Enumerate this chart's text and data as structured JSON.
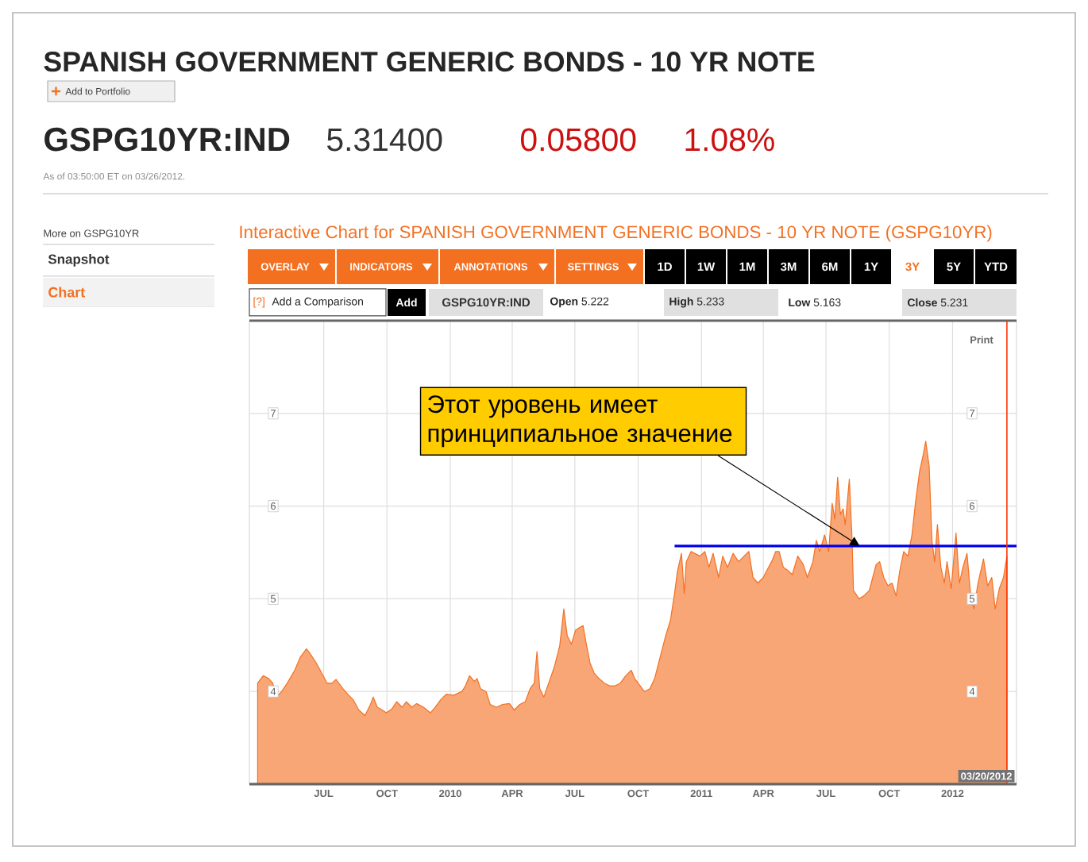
{
  "chart_data": {
    "type": "area",
    "title": "SPANISH GOVERNMENT GENERIC BONDS - 10 YR NOTE",
    "subtitle": "Interactive Chart for SPANISH GOVERNMENT GENERIC BONDS - 10 YR NOTE (GSPG10YR)",
    "annotations": [
      "Add to Portfolio",
      "GSPG10YR:IND",
      "5.31400",
      "0.05800",
      "1.08%",
      "As of 03:50:00 ET on 03/26/2012.",
      "More on GSPG10YR",
      "Snapshot",
      "Chart",
      "OVERLAY",
      "INDICATORS",
      "ANNOTATIONS",
      "SETTINGS",
      "1D",
      "1W",
      "1M",
      "3M",
      "6M",
      "1Y",
      "3Y",
      "5Y",
      "YTD",
      "[?]",
      "Add a Comparison",
      "Add",
      "GSPG10YR:IND",
      "**Open** 5.222",
      "**High** 5.233",
      "**Low** 5.163",
      "**Close** 5.231",
      "Print",
      {
        "text": "Этот уровень имеет принципиальное значение",
        "x": "2011-08-19",
        "y": 5.57
      }
    ],
    "series": [
      {
        "color": "#f8a675",
        "x": [
          "2009-03-27",
          "2009-04-04",
          "2009-04-12",
          "2009-04-18",
          "2009-04-23",
          "2009-05-01",
          "2009-05-09",
          "2009-05-20",
          "2009-05-28",
          "2009-06-06",
          "2009-06-12",
          "2009-06-20",
          "2009-06-28",
          "2009-07-06",
          "2009-07-13",
          "2009-07-19",
          "2009-07-29",
          "2009-08-05",
          "2009-08-13",
          "2009-08-21",
          "2009-08-30",
          "2009-09-07",
          "2009-09-11",
          "2009-09-17",
          "2009-09-24",
          "2009-09-30",
          "2009-10-08",
          "2009-10-15",
          "2009-10-23",
          "2009-10-29",
          "2009-11-06",
          "2009-11-13",
          "2009-11-23",
          "2009-12-03",
          "2009-12-10",
          "2009-12-18",
          "2009-12-26",
          "2010-01-06",
          "2010-01-18",
          "2010-01-23",
          "2010-01-29",
          "2010-02-05",
          "2010-02-09",
          "2010-02-14",
          "2010-02-22",
          "2010-02-28",
          "2010-03-09",
          "2010-03-18",
          "2010-03-28",
          "2010-04-04",
          "2010-04-12",
          "2010-04-20",
          "2010-04-27",
          "2010-05-03",
          "2010-05-07",
          "2010-05-11",
          "2010-05-17",
          "2010-05-24",
          "2010-06-01",
          "2010-06-09",
          "2010-06-15",
          "2010-06-20",
          "2010-06-26",
          "2010-07-02",
          "2010-07-08",
          "2010-07-13",
          "2010-07-17",
          "2010-07-23",
          "2010-07-29",
          "2010-08-05",
          "2010-08-13",
          "2010-08-21",
          "2010-08-28",
          "2010-09-05",
          "2010-09-13",
          "2010-09-21",
          "2010-09-26",
          "2010-10-04",
          "2010-10-10",
          "2010-10-18",
          "2010-10-25",
          "2010-11-02",
          "2010-11-10",
          "2010-11-17",
          "2010-11-23",
          "2010-11-27",
          "2010-12-03",
          "2010-12-07",
          "2010-12-10",
          "2010-12-17",
          "2010-12-22",
          "2010-12-30",
          "2011-01-06",
          "2011-01-12",
          "2011-01-18",
          "2011-01-26",
          "2011-02-01",
          "2011-02-08",
          "2011-02-16",
          "2011-02-24",
          "2011-03-04",
          "2011-03-11",
          "2011-03-17",
          "2011-03-24",
          "2011-04-01",
          "2011-04-05",
          "2011-04-13",
          "2011-04-19",
          "2011-04-24",
          "2011-04-30",
          "2011-05-06",
          "2011-05-13",
          "2011-05-21",
          "2011-05-29",
          "2011-06-04",
          "2011-06-12",
          "2011-06-17",
          "2011-06-22",
          "2011-06-29",
          "2011-07-05",
          "2011-07-10",
          "2011-07-14",
          "2011-07-18",
          "2011-07-22",
          "2011-07-26",
          "2011-07-29",
          "2011-08-04",
          "2011-08-08",
          "2011-08-10",
          "2011-08-18",
          "2011-08-25",
          "2011-09-02",
          "2011-09-07",
          "2011-09-12",
          "2011-09-17",
          "2011-09-23",
          "2011-09-29",
          "2011-10-05",
          "2011-10-11",
          "2011-10-16",
          "2011-10-22",
          "2011-10-28",
          "2011-11-03",
          "2011-11-08",
          "2011-11-14",
          "2011-11-19",
          "2011-11-23",
          "2011-11-28",
          "2011-12-02",
          "2011-12-06",
          "2011-12-10",
          "2011-12-15",
          "2011-12-20",
          "2011-12-24",
          "2011-12-30",
          "2012-01-06",
          "2012-01-11",
          "2012-01-16",
          "2012-01-22",
          "2012-01-27",
          "2012-02-01",
          "2012-02-07",
          "2012-02-15",
          "2012-02-21",
          "2012-02-27",
          "2012-03-03",
          "2012-03-09",
          "2012-03-15",
          "2012-03-20"
        ],
        "values": [
          4.09,
          4.17,
          4.14,
          4.09,
          3.94,
          4.0,
          4.09,
          4.23,
          4.37,
          4.46,
          4.4,
          4.31,
          4.2,
          4.09,
          4.09,
          4.13,
          4.03,
          3.97,
          3.91,
          3.8,
          3.74,
          3.86,
          3.94,
          3.83,
          3.8,
          3.77,
          3.81,
          3.89,
          3.83,
          3.89,
          3.83,
          3.87,
          3.83,
          3.77,
          3.83,
          3.91,
          3.97,
          3.96,
          4.0,
          4.06,
          4.17,
          4.11,
          4.14,
          4.03,
          4.0,
          3.86,
          3.83,
          3.86,
          3.87,
          3.8,
          3.86,
          3.89,
          4.03,
          4.09,
          4.43,
          4.03,
          3.94,
          4.09,
          4.26,
          4.49,
          4.89,
          4.6,
          4.51,
          4.66,
          4.69,
          4.71,
          4.54,
          4.31,
          4.2,
          4.14,
          4.09,
          4.06,
          4.06,
          4.09,
          4.17,
          4.23,
          4.14,
          4.06,
          4.0,
          4.03,
          4.14,
          4.37,
          4.6,
          4.77,
          5.06,
          5.29,
          5.49,
          5.06,
          5.4,
          5.51,
          5.49,
          5.46,
          5.51,
          5.34,
          5.49,
          5.23,
          5.46,
          5.34,
          5.49,
          5.4,
          5.46,
          5.51,
          5.23,
          5.17,
          5.23,
          5.29,
          5.4,
          5.51,
          5.51,
          5.34,
          5.31,
          5.26,
          5.46,
          5.37,
          5.23,
          5.4,
          5.63,
          5.51,
          5.69,
          5.51,
          6.03,
          5.86,
          6.31,
          5.91,
          5.97,
          5.8,
          6.29,
          5.63,
          5.09,
          5.0,
          5.03,
          5.09,
          5.23,
          5.37,
          5.4,
          5.23,
          5.14,
          5.17,
          5.03,
          5.29,
          5.51,
          5.46,
          5.69,
          6.03,
          6.37,
          6.54,
          6.7,
          6.43,
          5.63,
          5.4,
          5.8,
          5.34,
          5.17,
          5.4,
          5.11,
          5.71,
          5.17,
          5.34,
          5.49,
          5.06,
          4.89,
          5.17,
          5.43,
          5.14,
          5.23,
          4.89,
          5.11,
          5.23,
          5.46
        ]
      },
      {
        "type": "line",
        "color": "#0000ee",
        "x": [
          "2010-11-23",
          "2012-04-03"
        ],
        "values": [
          5.57,
          5.57
        ]
      }
    ],
    "xlim": [
      "2009-03-15",
      "2012-04-03"
    ],
    "xticks": [
      {
        "value": "2009-07",
        "label": "JUL"
      },
      {
        "value": "2009-10",
        "label": "OCT"
      },
      {
        "value": "2010",
        "label": "2010"
      },
      {
        "value": "2010-04",
        "label": "APR"
      },
      {
        "value": "2010-07",
        "label": "JUL"
      },
      {
        "value": "2010-10",
        "label": "OCT"
      },
      {
        "value": "2011",
        "label": "2011"
      },
      {
        "value": "2011-04",
        "label": "APR"
      },
      {
        "value": "2011-07",
        "label": "JUL"
      },
      {
        "value": "2011-10",
        "label": "OCT"
      },
      {
        "value": "2012",
        "label": "2012"
      }
    ],
    "ylim": [
      3,
      8
    ],
    "yticks": [
      4,
      5,
      6,
      7
    ],
    "y2lim": [
      3,
      8
    ],
    "y2ticks": [
      4,
      5,
      6,
      7
    ],
    "ref_lines": [
      {
        "axis": "x",
        "value": "2012-03-20",
        "label": "03/20/2012",
        "color": "#ff3300"
      }
    ],
    "grid": true
  }
}
